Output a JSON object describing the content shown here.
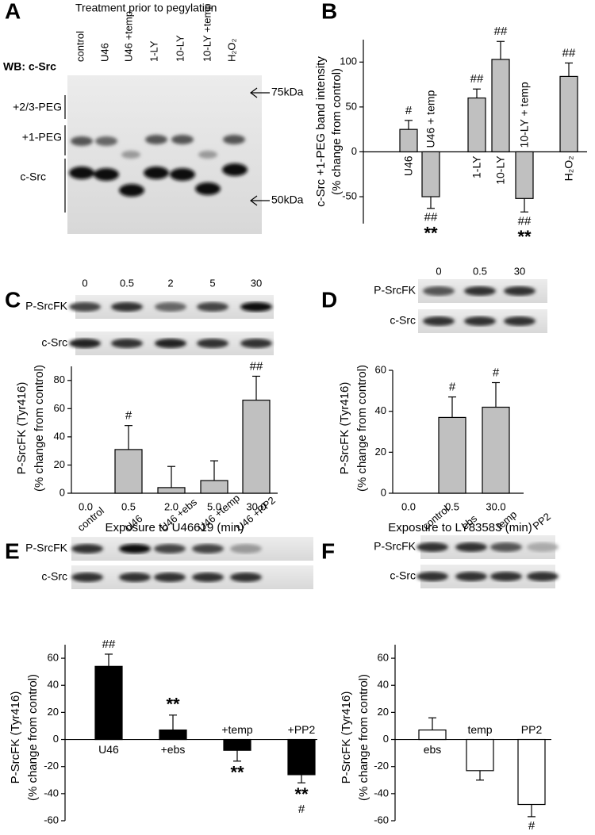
{
  "panel_a": {
    "label": "A",
    "title": "Treatment prior to pegylation",
    "antibody": "WB: c-Src",
    "lanes": [
      "control",
      "U46",
      "U46 +temp",
      "1-LY",
      "10-LY",
      "10-LY +temp",
      "H₂O₂"
    ],
    "bands": [
      "+2/3-PEG",
      "+1-PEG",
      "c-Src"
    ],
    "markers": [
      "75kDa",
      "50kDa"
    ]
  },
  "chart_data": [
    {
      "type": "bar",
      "panel": "B",
      "ylabel": [
        "c-Src +1-PEG band intensity",
        "(% change from control)"
      ],
      "categories": [
        "U46",
        "U46 + temp",
        "1-LY",
        "10-LY",
        "10-LY + temp",
        "H₂O₂"
      ],
      "values": [
        25,
        -50,
        60,
        103,
        -52,
        84
      ],
      "errors": [
        10,
        13,
        10,
        20,
        15,
        15
      ],
      "sig_above": [
        "#",
        null,
        "##",
        "##",
        null,
        "##"
      ],
      "sig_below": [
        null,
        [
          "##",
          "**"
        ],
        null,
        null,
        [
          "##",
          "**"
        ],
        null
      ],
      "color": "#c0c0c0",
      "ylim": [
        -80,
        125
      ],
      "yticks": [
        -50,
        0,
        50,
        100
      ]
    },
    {
      "type": "bar",
      "panel": "C",
      "blot": {
        "lanes": [
          "0",
          "0.5",
          "2",
          "5",
          "30"
        ],
        "rows": [
          "P-SrcFK",
          "c-Src"
        ]
      },
      "ylabel": [
        "P-SrcFK (Tyr416)",
        "(% change from control)"
      ],
      "xlabel": "Exposure to U46619 (min)",
      "categories": [
        "0.0",
        "0.5",
        "2.0",
        "5.0",
        "30.0"
      ],
      "values": [
        0,
        31,
        4,
        9,
        66
      ],
      "errors": [
        0,
        17,
        15,
        14,
        17
      ],
      "sig_above": [
        null,
        "#",
        null,
        null,
        "##"
      ],
      "color": "#c0c0c0",
      "ylim": [
        0,
        90
      ],
      "yticks": [
        0,
        20,
        40,
        60,
        80
      ]
    },
    {
      "type": "bar",
      "panel": "D",
      "blot": {
        "lanes": [
          "0",
          "0.5",
          "30"
        ],
        "rows": [
          "P-SrcFK",
          "c-Src"
        ]
      },
      "ylabel": [
        "P-SrcFK (Tyr416)",
        "(% change from control)"
      ],
      "xlabel": "Exposure to LY83583 (min)",
      "categories": [
        "0.0",
        "0.5",
        "30.0"
      ],
      "values": [
        0,
        37,
        42
      ],
      "errors": [
        0,
        10,
        12
      ],
      "sig_above": [
        null,
        "#",
        "#"
      ],
      "color": "#c0c0c0",
      "ylim": [
        0,
        60
      ],
      "yticks": [
        0,
        20,
        40,
        60
      ]
    },
    {
      "type": "bar",
      "panel": "E",
      "blot": {
        "lanes": [
          "control",
          "U46",
          "U46 +ebs",
          "U46 +temp",
          "U46 +PP2"
        ],
        "rows": [
          "P-SrcFK",
          "c-Src"
        ]
      },
      "ylabel": [
        "P-SrcFK (Tyr416)",
        "(% change from control)"
      ],
      "categories": [
        "U46",
        "+ebs",
        "+temp",
        "+PP2"
      ],
      "values": [
        54,
        7,
        -8,
        -26
      ],
      "errors": [
        9,
        11,
        8,
        6
      ],
      "sig_above": [
        "##",
        "**",
        null,
        null
      ],
      "sig_below": [
        null,
        null,
        [
          "**"
        ],
        [
          "**",
          "#"
        ]
      ],
      "color": "#000000",
      "ylim": [
        -60,
        70
      ],
      "yticks": [
        -60,
        -40,
        -20,
        0,
        20,
        40,
        60
      ]
    },
    {
      "type": "bar",
      "panel": "F",
      "blot": {
        "lanes": [
          "control",
          "ebs",
          "temp",
          "PP2"
        ],
        "rows": [
          "P-SrcFK",
          "c-Src"
        ]
      },
      "ylabel": [
        "P-SrcFK (Tyr416)",
        "(% change from control)"
      ],
      "categories": [
        "ebs",
        "temp",
        "PP2"
      ],
      "values": [
        7,
        -23,
        -48
      ],
      "errors": [
        9,
        7,
        9
      ],
      "sig_below": [
        null,
        null,
        [
          "#"
        ]
      ],
      "color": "#ffffff",
      "ylim": [
        -60,
        70
      ],
      "yticks": [
        -60,
        -40,
        -20,
        0,
        20,
        40,
        60
      ]
    }
  ]
}
